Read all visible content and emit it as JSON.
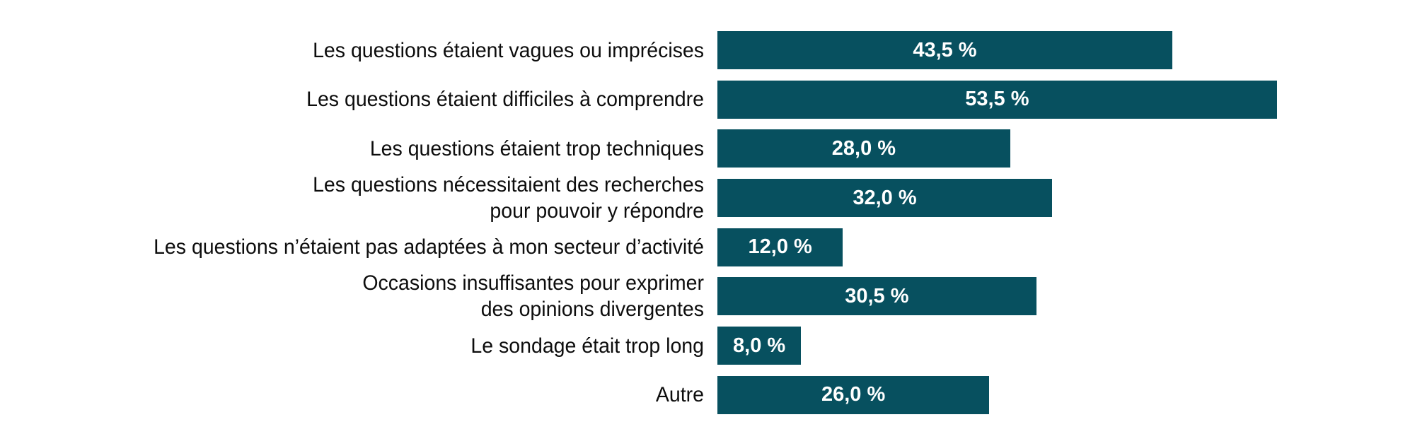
{
  "chart_data": {
    "type": "bar",
    "orientation": "horizontal",
    "title": "",
    "xlabel": "",
    "ylabel": "",
    "grid": false,
    "legend": false,
    "axis_visible": false,
    "xlim": [
      0,
      66.7
    ],
    "bar_color": "#07505f",
    "category_label_color": "#0d0d0d",
    "value_label_color": "#ffffff",
    "categories": [
      "Les questions étaient vagues ou imprécises",
      "Les questions étaient difficiles à comprendre",
      "Les questions étaient trop techniques",
      "Les questions nécessitaient des recherches\npour pouvoir y répondre",
      "Les questions n’étaient pas adaptées à mon secteur d’activité",
      "Occasions insuffisantes pour exprimer\ndes opinions divergentes",
      "Le sondage était trop long",
      "Autre"
    ],
    "values": [
      43.5,
      53.5,
      28.0,
      32.0,
      12.0,
      30.5,
      8.0,
      26.0
    ],
    "value_labels": [
      "43,5 %",
      "53,5 %",
      "28,0 %",
      "32,0 %",
      "12,0 %",
      "30,5 %",
      "8,0 %",
      "26,0 %"
    ]
  }
}
